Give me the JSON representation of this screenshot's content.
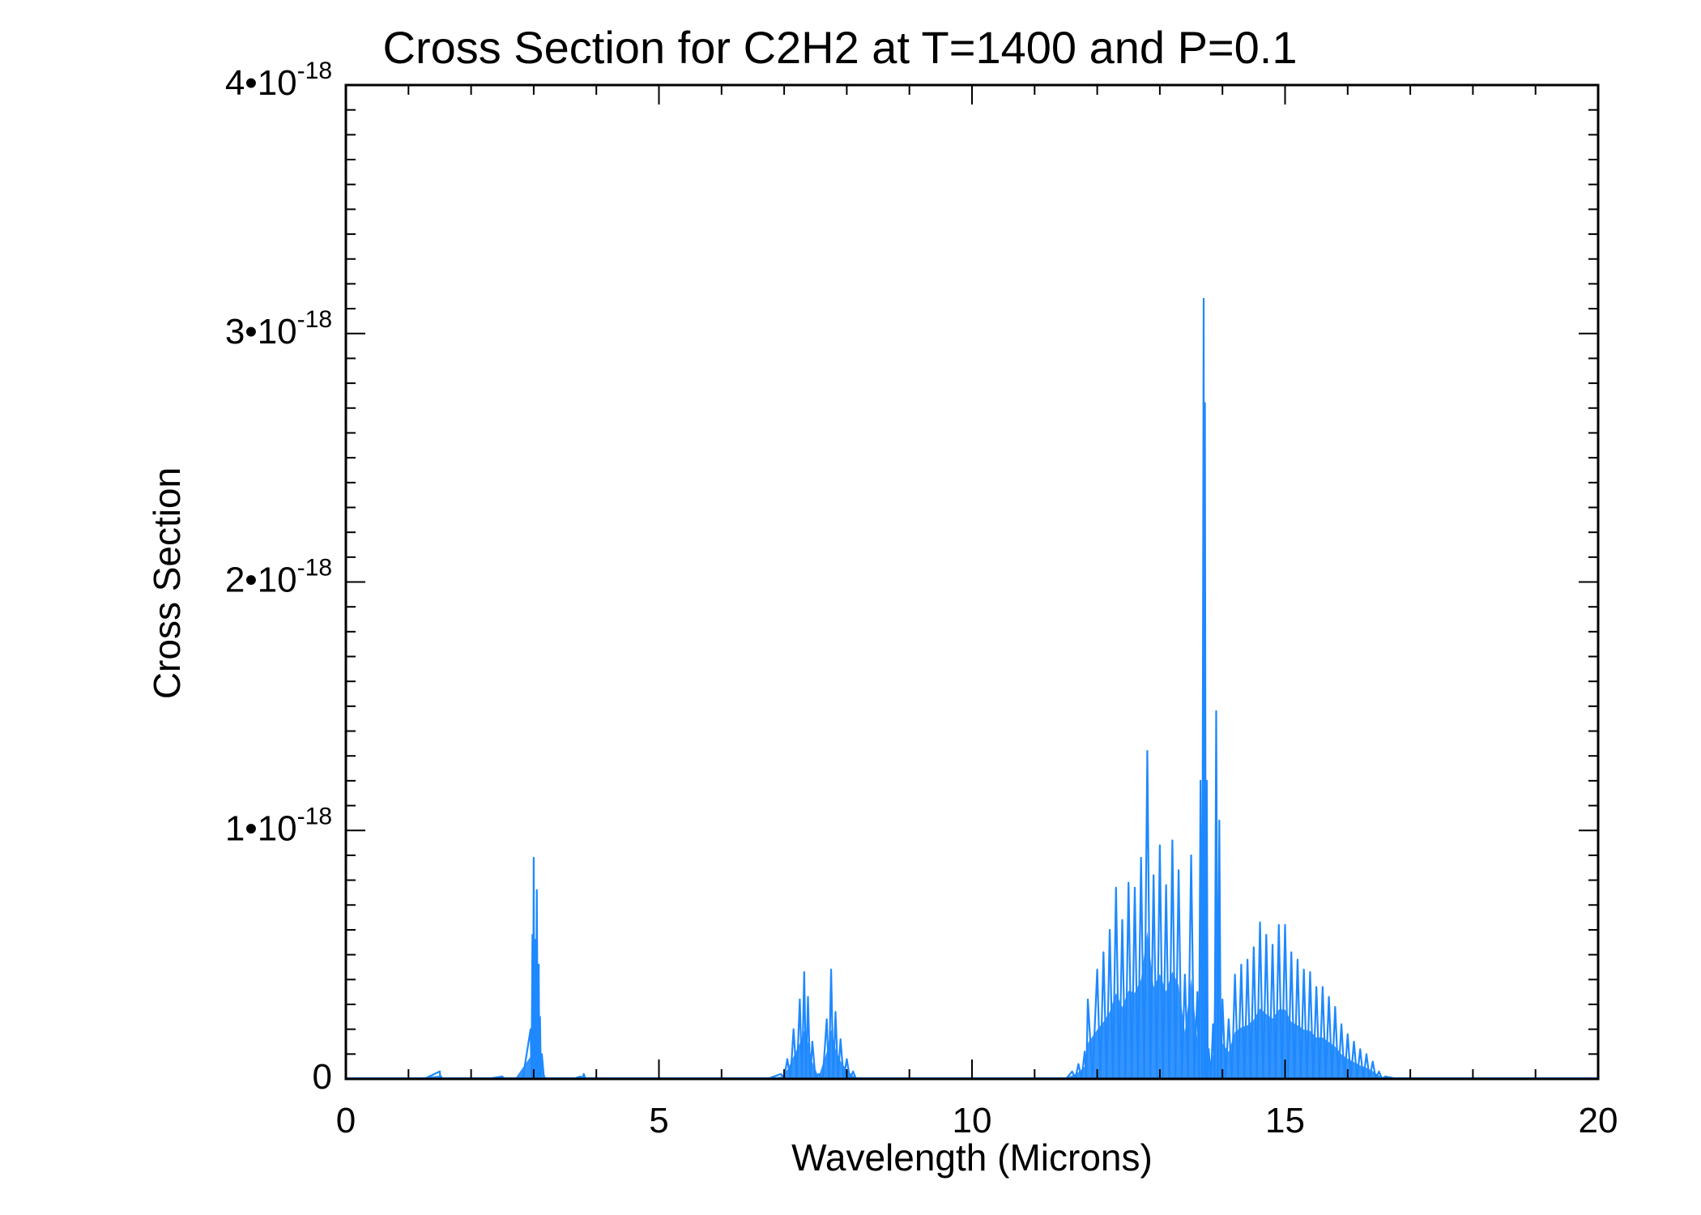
{
  "chart_data": {
    "type": "line",
    "title": "Cross Section for C2H2 at T=1400 and P=0.1",
    "xlabel": "Wavelength (Microns)",
    "ylabel": "Cross Section",
    "xlim": [
      0,
      20
    ],
    "ylim": [
      0,
      4e-18
    ],
    "x_ticks": [
      {
        "value": 0,
        "label": "0"
      },
      {
        "value": 5,
        "label": "5"
      },
      {
        "value": 10,
        "label": "10"
      },
      {
        "value": 15,
        "label": "15"
      },
      {
        "value": 20,
        "label": "20"
      }
    ],
    "y_ticks": [
      {
        "value": 0,
        "mantissa": "0",
        "exponent": ""
      },
      {
        "value": 1e-18,
        "mantissa": "1•10",
        "exponent": "-18"
      },
      {
        "value": 2e-18,
        "mantissa": "2•10",
        "exponent": "-18"
      },
      {
        "value": 3e-18,
        "mantissa": "3•10",
        "exponent": "-18"
      },
      {
        "value": 4e-18,
        "mantissa": "4•10",
        "exponent": "-18"
      }
    ],
    "line_color": "#1e88ff",
    "grid": false,
    "series": [
      {
        "x": [
          1.0,
          1.5,
          1.52,
          1.55,
          2.0,
          2.5,
          2.55,
          2.7,
          2.95,
          2.98,
          3.0,
          3.02,
          3.05,
          3.08,
          3.1,
          3.13,
          3.2,
          3.5,
          3.75,
          3.8,
          3.85,
          4.0,
          5.0,
          6.5,
          6.95,
          7.05,
          7.15,
          7.25,
          7.32,
          7.38,
          7.45,
          7.55,
          7.68,
          7.75,
          7.82,
          7.9,
          8.0,
          8.1,
          8.2,
          9.0,
          10.0,
          11.4,
          11.6,
          11.7,
          11.8,
          11.85,
          12.0,
          12.1,
          12.2,
          12.3,
          12.4,
          12.5,
          12.6,
          12.7,
          12.8,
          12.9,
          13.0,
          13.1,
          13.2,
          13.3,
          13.4,
          13.5,
          13.6,
          13.65,
          13.7,
          13.72,
          13.75,
          13.78,
          13.85,
          13.9,
          13.95,
          14.0,
          14.1,
          14.2,
          14.3,
          14.4,
          14.5,
          14.6,
          14.7,
          14.8,
          14.9,
          15.0,
          15.1,
          15.2,
          15.3,
          15.4,
          15.5,
          15.6,
          15.7,
          15.8,
          15.9,
          16.0,
          16.1,
          16.2,
          16.3,
          16.4,
          16.5,
          16.6,
          17.0,
          18.0,
          20.0
        ],
        "y": [
          0,
          3e-20,
          1e-20,
          0,
          0,
          1e-20,
          0,
          0,
          2e-19,
          5.8e-19,
          8.9e-19,
          5.6e-19,
          7.6e-19,
          4.6e-19,
          2.5e-19,
          1e-19,
          0,
          0,
          1e-20,
          2e-20,
          0,
          0,
          0,
          0,
          2e-20,
          8e-20,
          2e-19,
          3.2e-19,
          4.3e-19,
          3.3e-19,
          1.5e-19,
          2e-20,
          2.4e-19,
          4.4e-19,
          2.7e-19,
          1.6e-19,
          8e-20,
          3e-20,
          0,
          0,
          0,
          0,
          3e-20,
          6e-20,
          1.1e-19,
          3.2e-19,
          4.4e-19,
          5.1e-19,
          6e-19,
          7.7e-19,
          6.4e-19,
          7.9e-19,
          7.7e-19,
          8.9e-19,
          1.32e-18,
          8.2e-19,
          9.4e-19,
          7.8e-19,
          9.6e-19,
          8.4e-19,
          4.2e-19,
          9e-19,
          3.5e-19,
          1.2e-18,
          3.14e-18,
          2.72e-18,
          1.2e-18,
          1.2e-19,
          2.2e-19,
          1.48e-18,
          1.04e-18,
          3.2e-19,
          2.4e-19,
          4.2e-19,
          4.6e-19,
          4.8e-19,
          5.3e-19,
          6.3e-19,
          5.8e-19,
          5.4e-19,
          6.2e-19,
          6.2e-19,
          5.1e-19,
          4.8e-19,
          4.4e-19,
          4.3e-19,
          3.7e-19,
          3.7e-19,
          3.3e-19,
          2.9e-19,
          2.2e-19,
          1.8e-19,
          1.5e-19,
          1.2e-19,
          1e-19,
          7e-20,
          3e-20,
          1e-20,
          0,
          0,
          0
        ]
      }
    ]
  }
}
